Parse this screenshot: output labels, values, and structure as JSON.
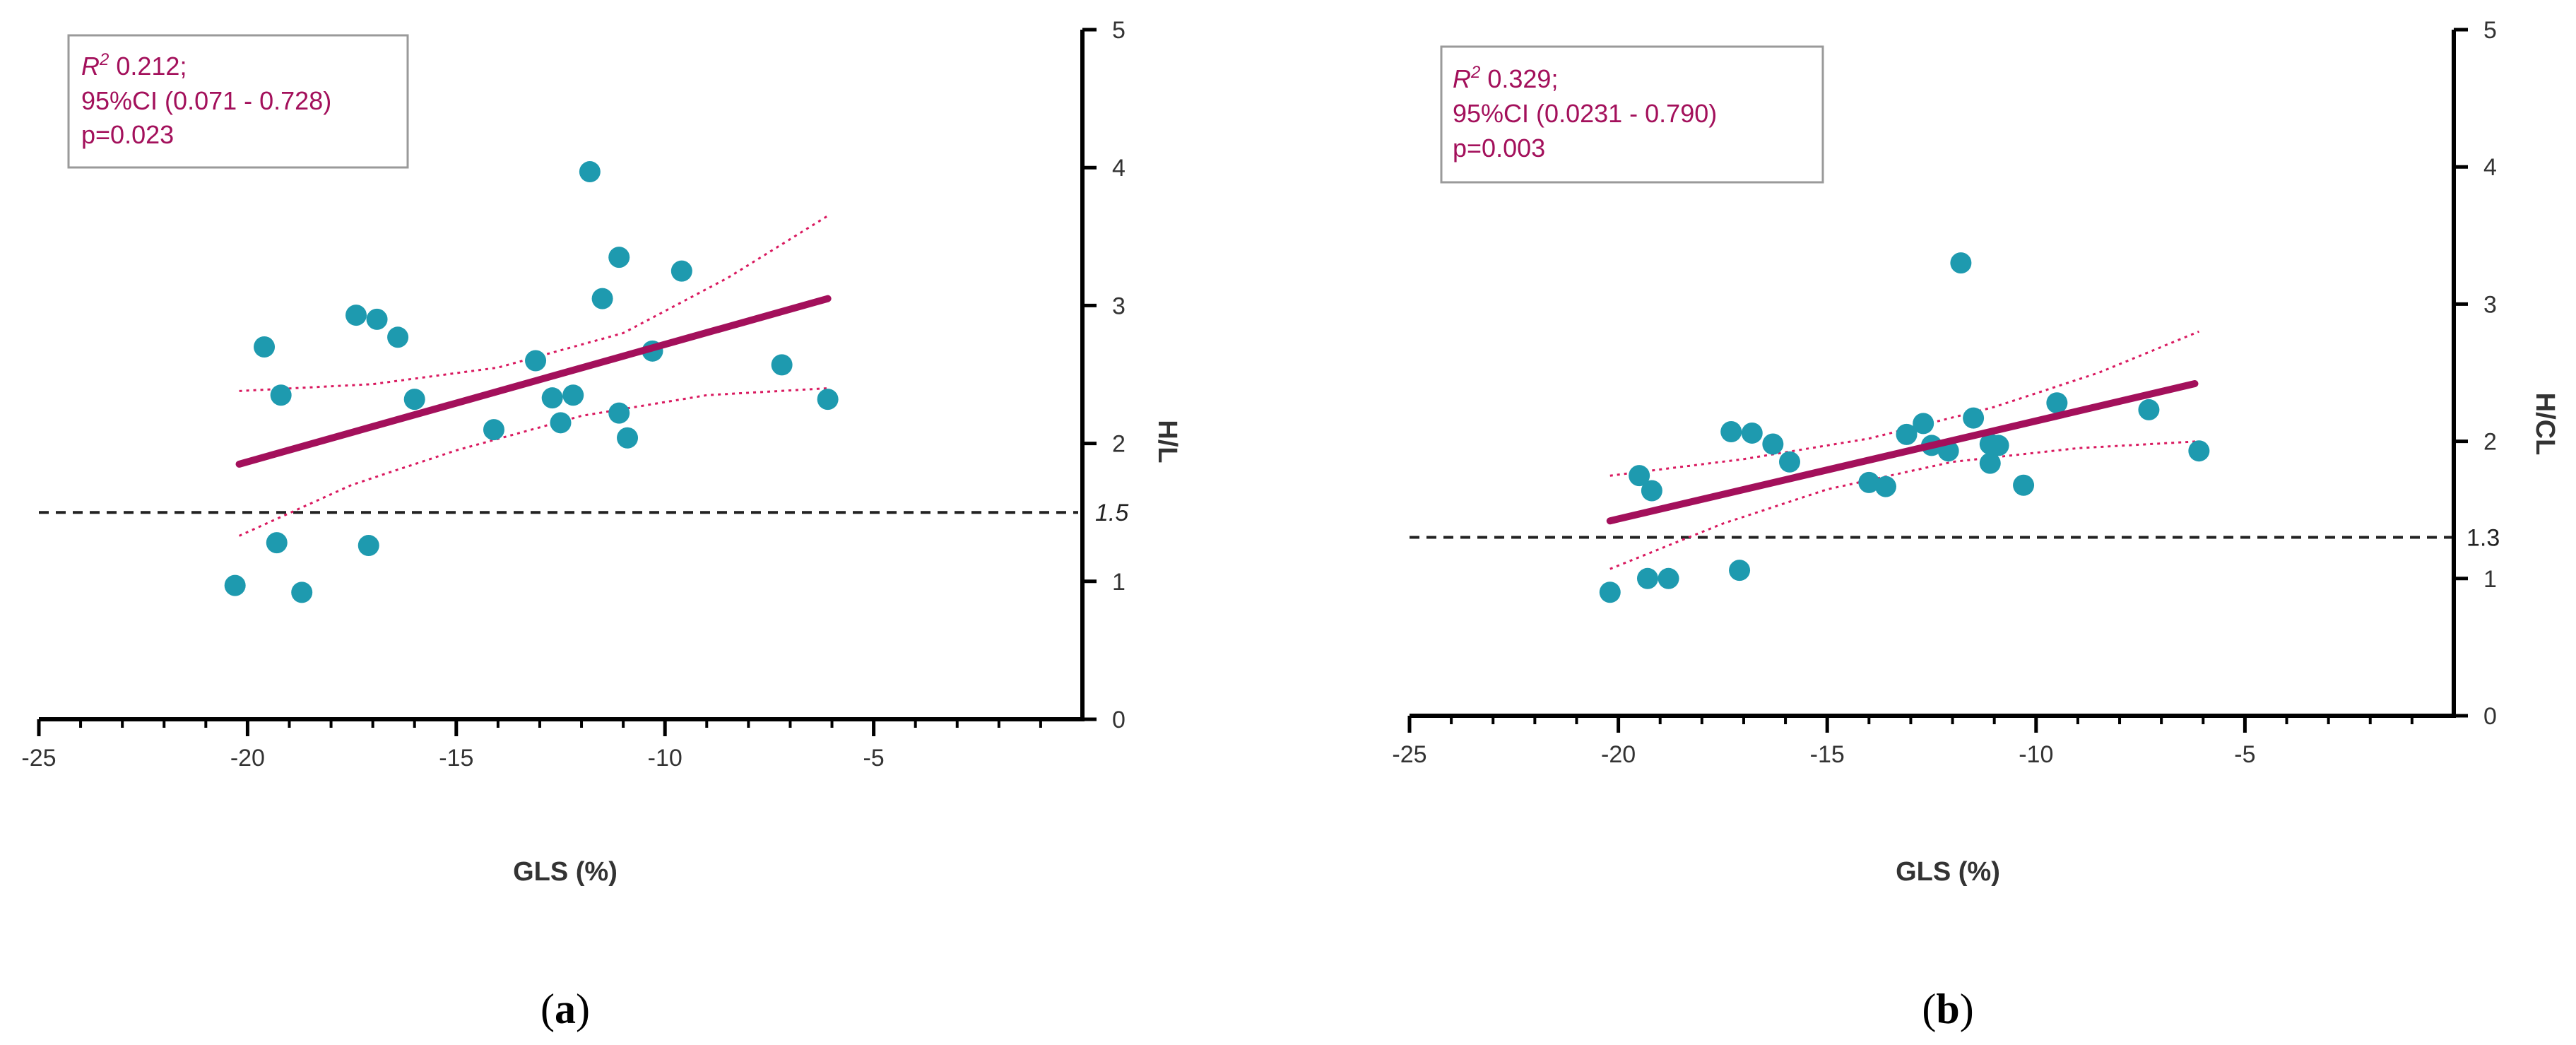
{
  "chart_data": [
    {
      "type": "scatter",
      "panel_label": "(a)",
      "panel_letter": "a",
      "xlabel": "GLS (%)",
      "ylabel": "H/L",
      "xlim": [
        -25,
        0
      ],
      "ylim": [
        0,
        5
      ],
      "x_ticks": [
        -25,
        -20,
        -15,
        -10,
        -5
      ],
      "x_tick_labels": [
        "-25",
        "-20",
        "-15",
        "-10",
        "-5"
      ],
      "y_ticks": [
        0,
        1,
        2,
        3,
        4,
        5
      ],
      "y_tick_labels": [
        "0",
        "1",
        "2",
        "3",
        "4",
        "5"
      ],
      "reference_line": {
        "y": 1.5,
        "label": "1.5"
      },
      "stats": {
        "r2_symbol": "R",
        "r2_sup": "2",
        "r2_value": " 0.212;",
        "ci": "95%CI (0.071 - 0.728)",
        "p": "p=0.023"
      },
      "points": [
        {
          "x": -20.3,
          "y": 0.97
        },
        {
          "x": -19.3,
          "y": 1.28
        },
        {
          "x": -18.7,
          "y": 0.92
        },
        {
          "x": -19.6,
          "y": 2.7
        },
        {
          "x": -19.2,
          "y": 2.35
        },
        {
          "x": -17.4,
          "y": 2.93
        },
        {
          "x": -16.9,
          "y": 2.9
        },
        {
          "x": -16.4,
          "y": 2.77
        },
        {
          "x": -17.1,
          "y": 1.26
        },
        {
          "x": -16.0,
          "y": 2.32
        },
        {
          "x": -14.1,
          "y": 2.1
        },
        {
          "x": -13.1,
          "y": 2.6
        },
        {
          "x": -12.7,
          "y": 2.33
        },
        {
          "x": -12.5,
          "y": 2.15
        },
        {
          "x": -12.2,
          "y": 2.35
        },
        {
          "x": -11.8,
          "y": 3.97
        },
        {
          "x": -11.5,
          "y": 3.05
        },
        {
          "x": -11.1,
          "y": 3.35
        },
        {
          "x": -11.1,
          "y": 2.22
        },
        {
          "x": -10.9,
          "y": 2.04
        },
        {
          "x": -10.3,
          "y": 2.67
        },
        {
          "x": -9.6,
          "y": 3.25
        },
        {
          "x": -7.2,
          "y": 2.57
        },
        {
          "x": -6.1,
          "y": 2.32
        }
      ],
      "fit_line": {
        "x": [
          -20.2,
          -6.1
        ],
        "y": [
          1.85,
          3.05
        ]
      },
      "ci_upper": {
        "x": [
          -20.2,
          -17.0,
          -14.0,
          -11.0,
          -8.5,
          -6.1
        ],
        "y": [
          2.38,
          2.43,
          2.55,
          2.8,
          3.2,
          3.65
        ]
      },
      "ci_lower": {
        "x": [
          -20.2,
          -17.5,
          -15.0,
          -12.0,
          -9.0,
          -6.1
        ],
        "y": [
          1.33,
          1.7,
          1.95,
          2.2,
          2.35,
          2.4
        ]
      }
    },
    {
      "type": "scatter",
      "panel_label": "(b)",
      "panel_letter": "b",
      "xlabel": "GLS (%)",
      "ylabel": "H/CL",
      "xlim": [
        -25,
        0
      ],
      "ylim": [
        0,
        5
      ],
      "x_ticks": [
        -25,
        -20,
        -15,
        -10,
        -5
      ],
      "x_tick_labels": [
        "-25",
        "-20",
        "-15",
        "-10",
        "-5"
      ],
      "y_ticks": [
        0,
        1,
        2,
        3,
        4,
        5
      ],
      "y_tick_labels": [
        "0",
        "1",
        "2",
        "3",
        "4",
        "5"
      ],
      "reference_line": {
        "y": 1.3,
        "label": "1.3"
      },
      "stats": {
        "r2_symbol": "R",
        "r2_sup": "2",
        "r2_value": " 0.329;",
        "ci": "95%CI (0.0231 - 0.790)",
        "p": "p=0.003"
      },
      "points": [
        {
          "x": -20.2,
          "y": 0.9
        },
        {
          "x": -19.3,
          "y": 1.0
        },
        {
          "x": -18.8,
          "y": 1.0
        },
        {
          "x": -19.5,
          "y": 1.75
        },
        {
          "x": -19.2,
          "y": 1.64
        },
        {
          "x": -17.3,
          "y": 2.07
        },
        {
          "x": -16.8,
          "y": 2.06
        },
        {
          "x": -16.3,
          "y": 1.98
        },
        {
          "x": -15.9,
          "y": 1.85
        },
        {
          "x": -17.1,
          "y": 1.06
        },
        {
          "x": -14.0,
          "y": 1.7
        },
        {
          "x": -13.6,
          "y": 1.67
        },
        {
          "x": -13.1,
          "y": 2.05
        },
        {
          "x": -12.7,
          "y": 2.13
        },
        {
          "x": -12.5,
          "y": 1.97
        },
        {
          "x": -12.1,
          "y": 1.93
        },
        {
          "x": -11.8,
          "y": 3.3
        },
        {
          "x": -11.5,
          "y": 2.17
        },
        {
          "x": -11.1,
          "y": 1.98
        },
        {
          "x": -11.1,
          "y": 1.84
        },
        {
          "x": -10.9,
          "y": 1.97
        },
        {
          "x": -10.3,
          "y": 1.68
        },
        {
          "x": -9.5,
          "y": 2.28
        },
        {
          "x": -7.3,
          "y": 2.23
        },
        {
          "x": -6.1,
          "y": 1.93
        }
      ],
      "fit_line": {
        "x": [
          -20.2,
          -6.2
        ],
        "y": [
          1.42,
          2.42
        ]
      },
      "ci_upper": {
        "x": [
          -20.2,
          -17.0,
          -14.0,
          -11.0,
          -8.5,
          -6.1
        ],
        "y": [
          1.75,
          1.87,
          2.02,
          2.25,
          2.5,
          2.8
        ]
      },
      "ci_lower": {
        "x": [
          -20.2,
          -17.5,
          -15.0,
          -12.0,
          -9.0,
          -6.1
        ],
        "y": [
          1.07,
          1.4,
          1.65,
          1.85,
          1.95,
          2.0
        ]
      }
    }
  ]
}
